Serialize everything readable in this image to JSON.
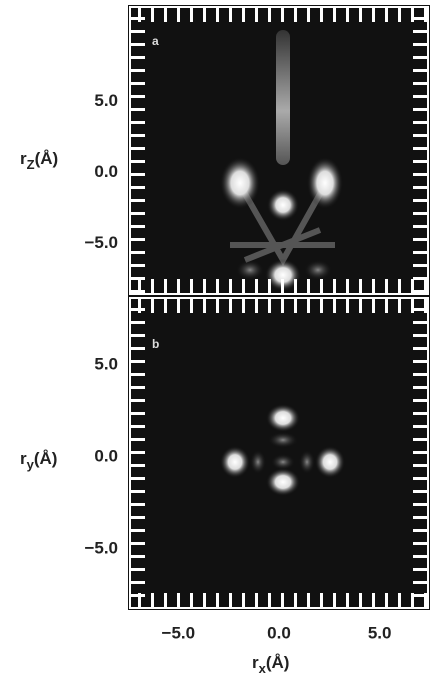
{
  "figure": {
    "panels": [
      {
        "label": "a",
        "ylabel": {
          "base": "r",
          "sub": "Z",
          "tail": "(Å)"
        },
        "ylim": [
          -8.7,
          11.8
        ],
        "yticks": [
          {
            "value": 5,
            "label": "5.0"
          },
          {
            "value": 0,
            "label": "0.0"
          },
          {
            "value": -5,
            "label": "−5.0"
          }
        ]
      },
      {
        "label": "b",
        "ylabel": {
          "base": "r",
          "sub": "y",
          "tail": "(Å)"
        },
        "ylim": [
          -8.3,
          8.75
        ],
        "yticks": [
          {
            "value": 5,
            "label": "5.0"
          },
          {
            "value": 0,
            "label": "0.0"
          },
          {
            "value": -5,
            "label": "−5.0"
          }
        ]
      }
    ],
    "xlabel": {
      "base": "r",
      "sub": "x",
      "tail": "(Å)"
    },
    "xlim": [
      -7.5,
      7.5
    ],
    "xticks": [
      {
        "value": -5,
        "label": "−5.0"
      },
      {
        "value": 0,
        "label": "0.0"
      },
      {
        "value": 5,
        "label": "5.0"
      }
    ]
  }
}
